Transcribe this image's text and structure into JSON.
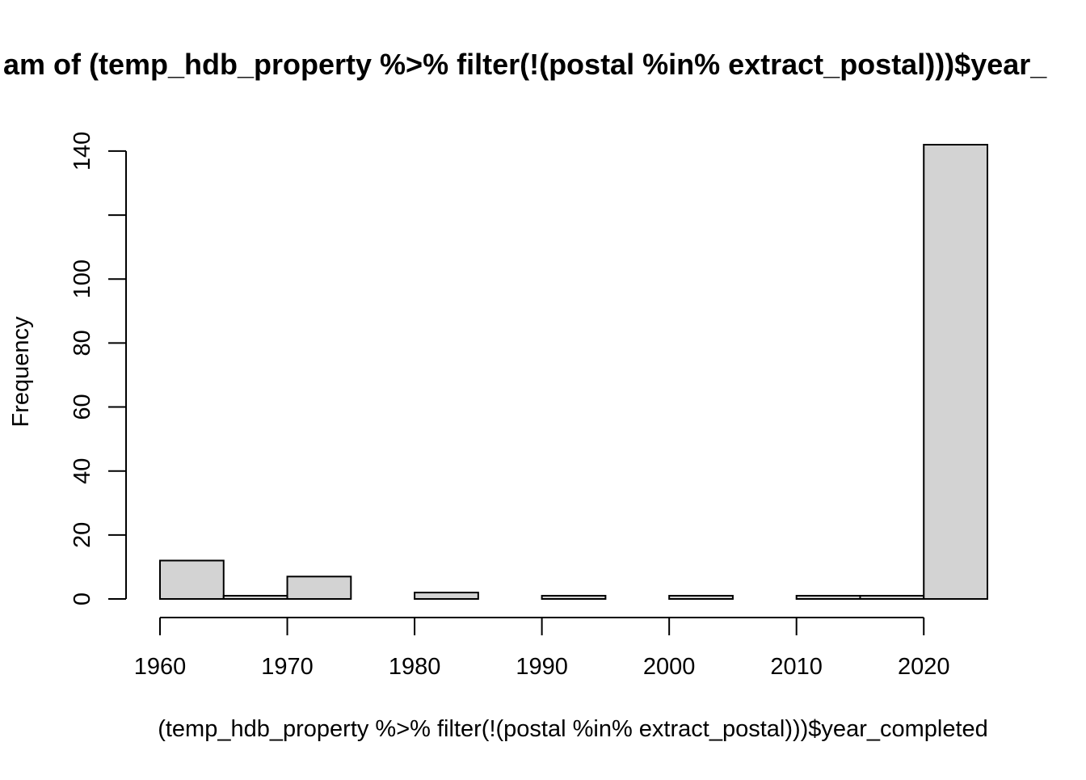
{
  "chart_data": {
    "type": "bar",
    "chart_kind": "histogram",
    "title": "Histogram of (temp_hdb_property %>% filter(!(postal %in% extract_postal)))$year_completed",
    "visible_title": "am of (temp_hdb_property %>% filter(!(postal %in% extract_postal)))$year_",
    "xlabel": "(temp_hdb_property %>% filter(!(postal %in% extract_postal)))$year_completed",
    "ylabel": "Frequency",
    "bins": [
      {
        "from": 1960,
        "to": 1965,
        "count": 12
      },
      {
        "from": 1965,
        "to": 1970,
        "count": 1
      },
      {
        "from": 1970,
        "to": 1975,
        "count": 7
      },
      {
        "from": 1975,
        "to": 1980,
        "count": 0
      },
      {
        "from": 1980,
        "to": 1985,
        "count": 2
      },
      {
        "from": 1985,
        "to": 1990,
        "count": 0
      },
      {
        "from": 1990,
        "to": 1995,
        "count": 1
      },
      {
        "from": 1995,
        "to": 2000,
        "count": 0
      },
      {
        "from": 2000,
        "to": 2005,
        "count": 1
      },
      {
        "from": 2005,
        "to": 2010,
        "count": 0
      },
      {
        "from": 2010,
        "to": 2015,
        "count": 1
      },
      {
        "from": 2015,
        "to": 2020,
        "count": 1
      },
      {
        "from": 2020,
        "to": 2025,
        "count": 142
      }
    ],
    "xlim": [
      1960,
      2025
    ],
    "ylim": [
      0,
      142
    ],
    "x_ticks": [
      1960,
      1970,
      1980,
      1990,
      2000,
      2010,
      2020
    ],
    "y_ticks": [
      0,
      20,
      40,
      60,
      80,
      100,
      120,
      140
    ],
    "y_tick_labels": [
      "0",
      "20",
      "40",
      "60",
      "80",
      "100",
      "",
      "140"
    ],
    "bar_fill": "#d3d3d3",
    "bar_stroke": "#000000",
    "grid": false,
    "legend": "none"
  }
}
